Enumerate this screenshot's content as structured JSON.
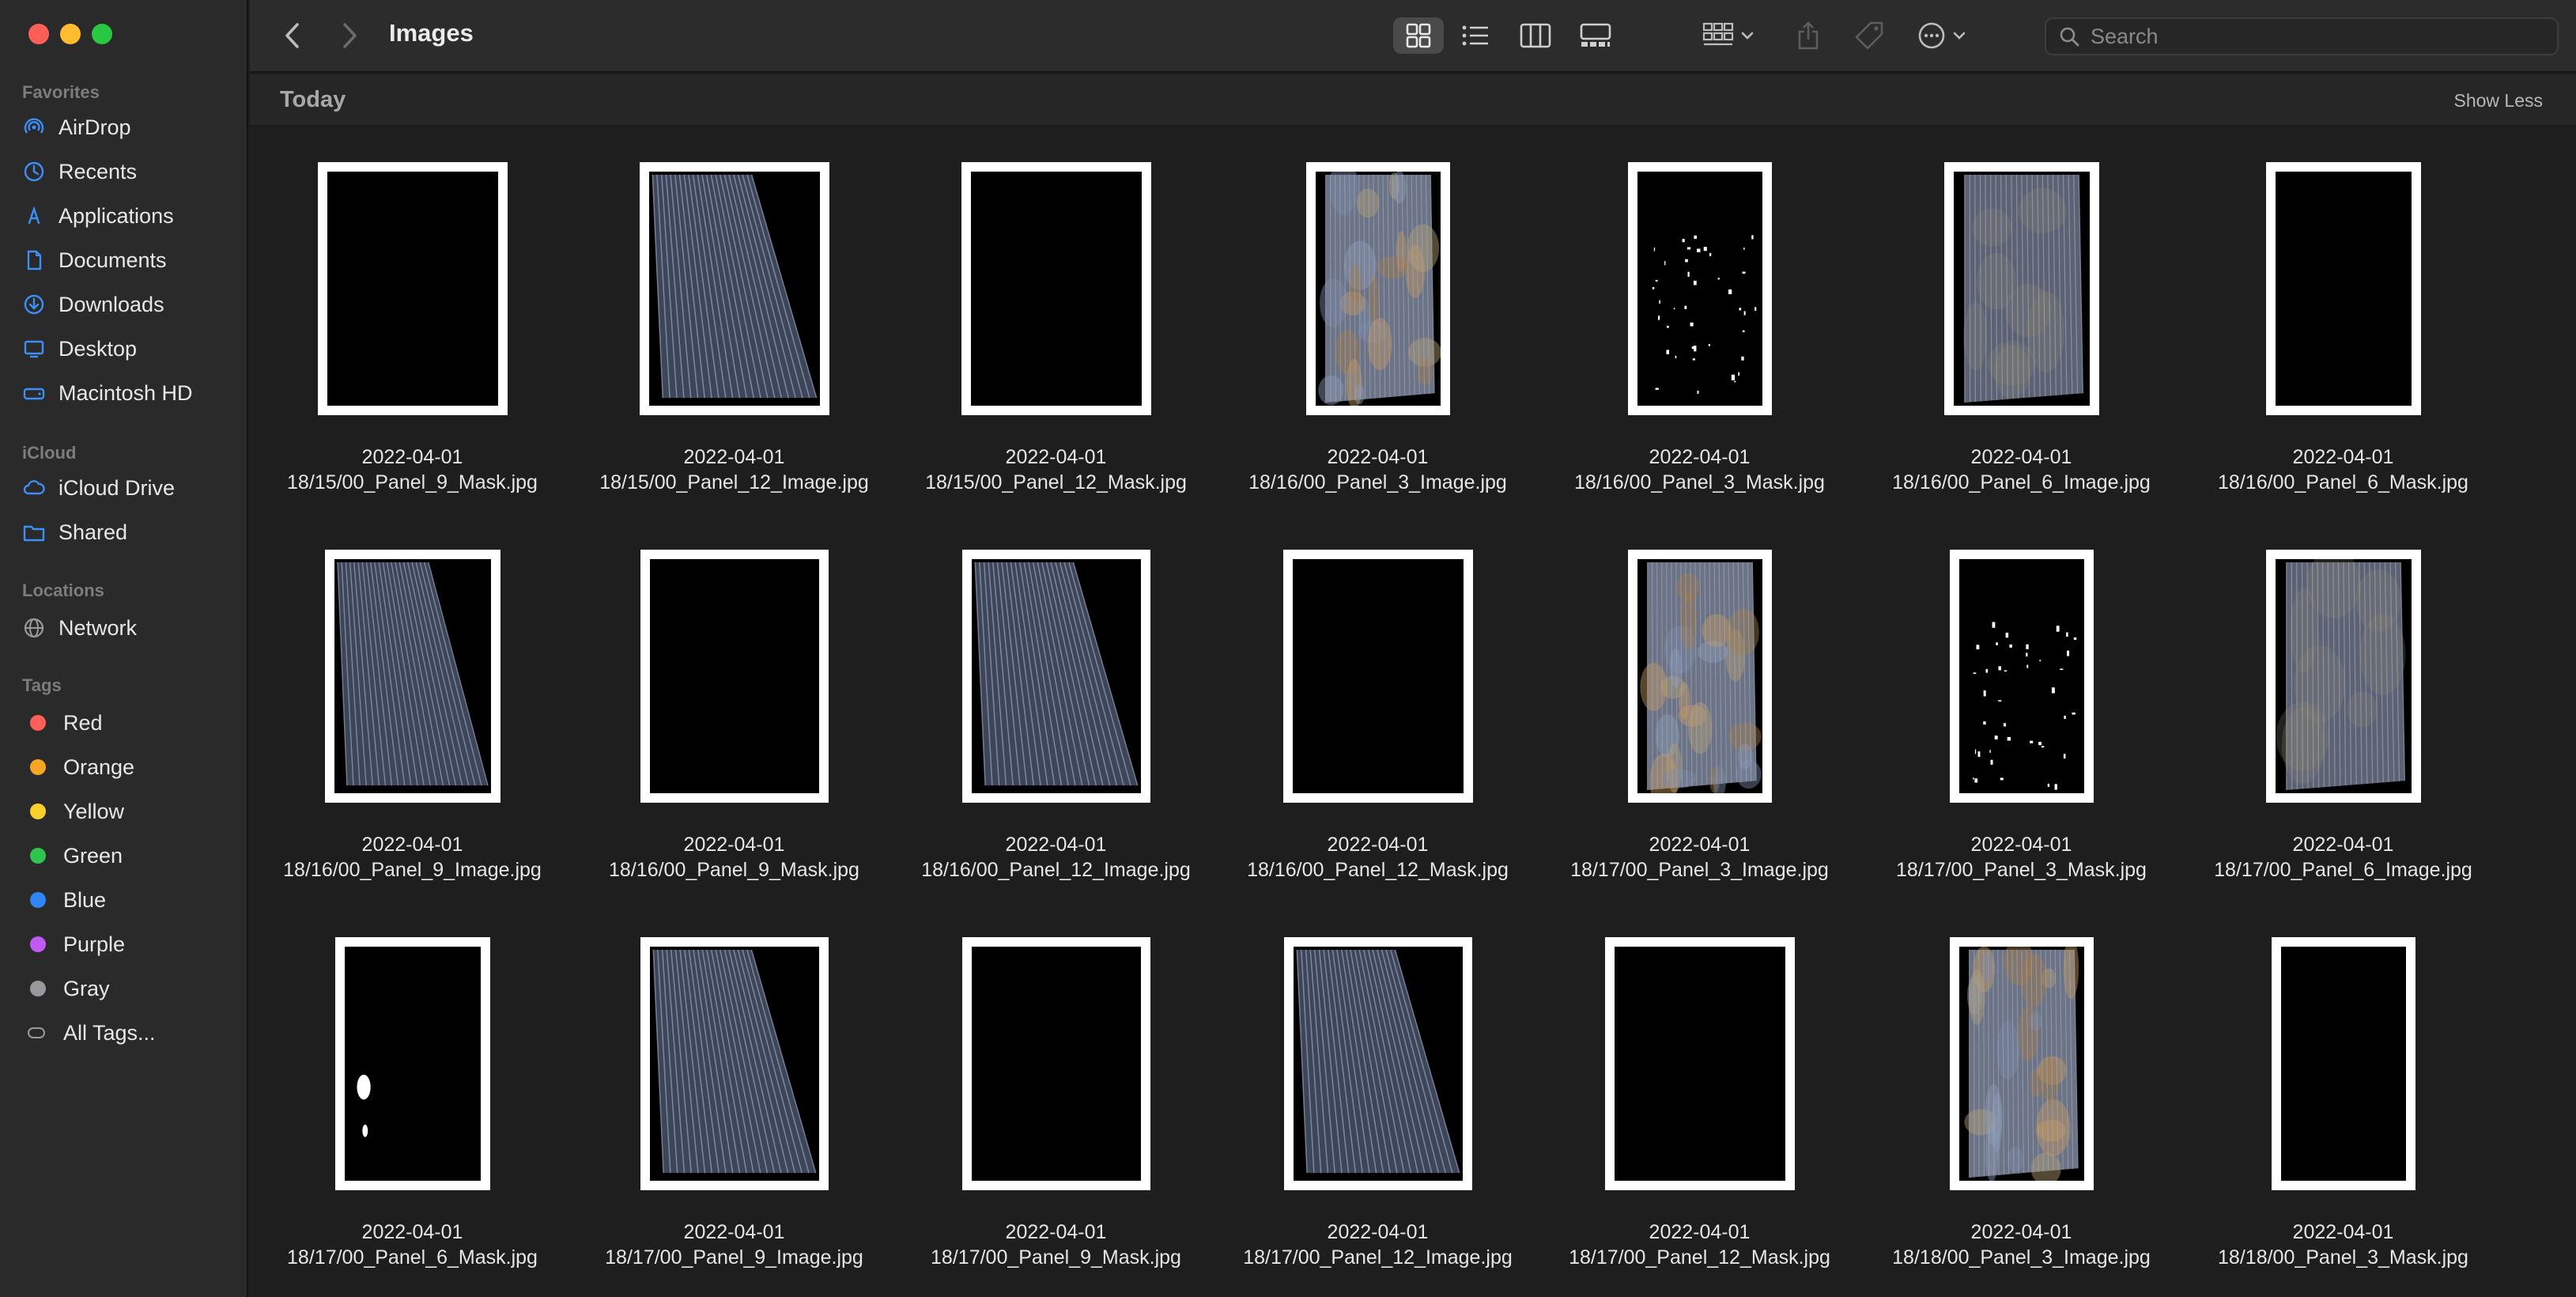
{
  "window": {
    "title": "Images"
  },
  "sidebar": {
    "sections": {
      "favorites": "Favorites",
      "icloud": "iCloud",
      "locations": "Locations",
      "tags": "Tags"
    },
    "favorites": [
      {
        "label": "AirDrop",
        "icon": "airdrop-icon"
      },
      {
        "label": "Recents",
        "icon": "clock-icon"
      },
      {
        "label": "Applications",
        "icon": "applications-icon"
      },
      {
        "label": "Documents",
        "icon": "document-icon"
      },
      {
        "label": "Downloads",
        "icon": "download-icon"
      },
      {
        "label": "Desktop",
        "icon": "desktop-icon"
      },
      {
        "label": "Macintosh HD",
        "icon": "disk-icon"
      }
    ],
    "icloud": [
      {
        "label": "iCloud Drive",
        "icon": "cloud-icon"
      },
      {
        "label": "Shared",
        "icon": "shared-folder-icon"
      }
    ],
    "locations": [
      {
        "label": "Network",
        "icon": "network-icon"
      }
    ],
    "tags": [
      {
        "label": "Red",
        "color": "#fe5f57"
      },
      {
        "label": "Orange",
        "color": "#f6a623"
      },
      {
        "label": "Yellow",
        "color": "#f7d02c"
      },
      {
        "label": "Green",
        "color": "#2fc44d"
      },
      {
        "label": "Blue",
        "color": "#2f86f6"
      },
      {
        "label": "Purple",
        "color": "#bf5af2"
      },
      {
        "label": "Gray",
        "color": "#98989d"
      },
      {
        "label": "All Tags...",
        "color": ""
      }
    ]
  },
  "toolbar": {
    "search_placeholder": "Search",
    "active_view": "icon-view"
  },
  "content": {
    "section_title": "Today",
    "show_less": "Show Less",
    "files": [
      {
        "line1": "2022-04-01",
        "line2": "18/15/00_Panel_9_Mask.jpg",
        "kind": "black"
      },
      {
        "line1": "2022-04-01",
        "line2": "18/15/00_Panel_12_Image.jpg",
        "kind": "stripes"
      },
      {
        "line1": "2022-04-01",
        "line2": "18/15/00_Panel_12_Mask.jpg",
        "kind": "black"
      },
      {
        "line1": "2022-04-01",
        "line2": "18/16/00_Panel_3_Image.jpg",
        "kind": "colorful"
      },
      {
        "line1": "2022-04-01",
        "line2": "18/16/00_Panel_3_Mask.jpg",
        "kind": "speckle"
      },
      {
        "line1": "2022-04-01",
        "line2": "18/16/00_Panel_6_Image.jpg",
        "kind": "gray"
      },
      {
        "line1": "2022-04-01",
        "line2": "18/16/00_Panel_6_Mask.jpg",
        "kind": "black"
      },
      {
        "line1": "2022-04-01",
        "line2": "18/16/00_Panel_9_Image.jpg",
        "kind": "stripes"
      },
      {
        "line1": "2022-04-01",
        "line2": "18/16/00_Panel_9_Mask.jpg",
        "kind": "black"
      },
      {
        "line1": "2022-04-01",
        "line2": "18/16/00_Panel_12_Image.jpg",
        "kind": "stripes"
      },
      {
        "line1": "2022-04-01",
        "line2": "18/16/00_Panel_12_Mask.jpg",
        "kind": "black"
      },
      {
        "line1": "2022-04-01",
        "line2": "18/17/00_Panel_3_Image.jpg",
        "kind": "colorful"
      },
      {
        "line1": "2022-04-01",
        "line2": "18/17/00_Panel_3_Mask.jpg",
        "kind": "speckle"
      },
      {
        "line1": "2022-04-01",
        "line2": "18/17/00_Panel_6_Image.jpg",
        "kind": "gray"
      },
      {
        "line1": "2022-04-01",
        "line2": "18/17/00_Panel_6_Mask.jpg",
        "kind": "blob"
      },
      {
        "line1": "2022-04-01",
        "line2": "18/17/00_Panel_9_Image.jpg",
        "kind": "stripes"
      },
      {
        "line1": "2022-04-01",
        "line2": "18/17/00_Panel_9_Mask.jpg",
        "kind": "black"
      },
      {
        "line1": "2022-04-01",
        "line2": "18/17/00_Panel_12_Image.jpg",
        "kind": "stripes"
      },
      {
        "line1": "2022-04-01",
        "line2": "18/17/00_Panel_12_Mask.jpg",
        "kind": "black"
      },
      {
        "line1": "2022-04-01",
        "line2": "18/18/00_Panel_3_Image.jpg",
        "kind": "colorful"
      },
      {
        "line1": "2022-04-01",
        "line2": "18/18/00_Panel_3_Mask.jpg",
        "kind": "black"
      }
    ]
  }
}
